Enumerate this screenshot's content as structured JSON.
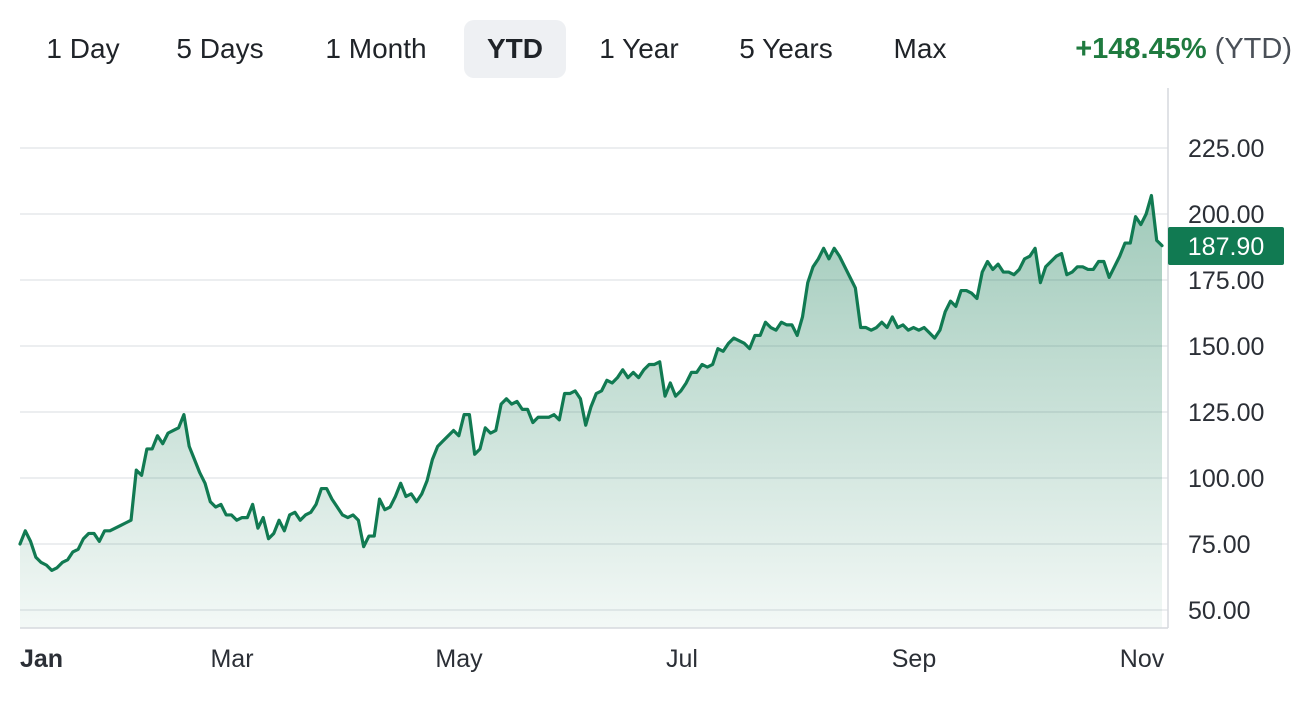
{
  "ranges": [
    {
      "label": "1 Day",
      "active": false
    },
    {
      "label": "5 Days",
      "active": false
    },
    {
      "label": "1 Month",
      "active": false
    },
    {
      "label": "YTD",
      "active": true
    },
    {
      "label": "1 Year",
      "active": false
    },
    {
      "label": "5 Years",
      "active": false
    },
    {
      "label": "Max",
      "active": false
    }
  ],
  "performance": {
    "value": "+148.45%",
    "period": "(YTD)",
    "color": "#1f7a3f"
  },
  "chart_data": {
    "type": "area",
    "y_ticks": [
      "225.00",
      "200.00",
      "175.00",
      "150.00",
      "125.00",
      "100.00",
      "75.00",
      "50.00"
    ],
    "ylim": [
      44,
      245
    ],
    "x_ticks": [
      {
        "label": "Jan",
        "bold": true
      },
      {
        "label": "Mar",
        "bold": false
      },
      {
        "label": "May",
        "bold": false
      },
      {
        "label": "Jul",
        "bold": false
      },
      {
        "label": "Sep",
        "bold": false
      },
      {
        "label": "Nov",
        "bold": false
      }
    ],
    "last_price": "187.90",
    "line_color": "#117a52",
    "grid": true,
    "values": [
      75,
      80,
      76,
      70,
      68,
      67,
      65,
      66,
      68,
      69,
      72,
      73,
      77,
      79,
      79,
      76,
      80,
      80,
      81,
      82,
      83,
      84,
      103,
      101,
      111,
      111,
      116,
      113,
      117,
      118,
      119,
      124,
      112,
      107,
      102,
      98,
      91,
      89,
      90,
      86,
      86,
      84,
      85,
      85,
      90,
      81,
      85,
      77,
      79,
      84,
      80,
      86,
      87,
      84,
      86,
      87,
      90,
      96,
      96,
      92,
      89,
      86,
      85,
      86,
      84,
      74,
      78,
      78,
      92,
      88,
      89,
      93,
      98,
      93,
      94,
      91,
      94,
      99,
      107,
      112,
      114,
      116,
      118,
      116,
      124,
      124,
      109,
      111,
      119,
      117,
      118,
      128,
      130,
      128,
      129,
      126,
      126,
      121,
      123,
      123,
      123,
      124,
      122,
      132,
      132,
      133,
      130,
      120,
      127,
      132,
      133,
      137,
      136,
      138,
      141,
      138,
      140,
      138,
      141,
      143,
      143,
      144,
      131,
      136,
      131,
      133,
      136,
      140,
      140,
      143,
      142,
      143,
      149,
      148,
      151,
      153,
      152,
      151,
      149,
      154,
      154,
      159,
      157,
      156,
      159,
      158,
      158,
      154,
      161,
      174,
      180,
      183,
      187,
      183,
      187,
      184,
      180,
      176,
      172,
      157,
      157,
      156,
      157,
      159,
      157,
      161,
      157,
      158,
      156,
      157,
      156,
      157,
      155,
      153,
      156,
      163,
      167,
      165,
      171,
      171,
      170,
      168,
      178,
      182,
      179,
      181,
      178,
      178,
      177,
      179,
      183,
      184,
      187,
      174,
      180,
      182,
      184,
      185,
      177,
      178,
      180,
      180,
      179,
      179,
      182,
      182,
      176,
      180,
      184,
      189,
      189,
      199,
      196,
      200,
      207,
      190,
      188
    ]
  }
}
